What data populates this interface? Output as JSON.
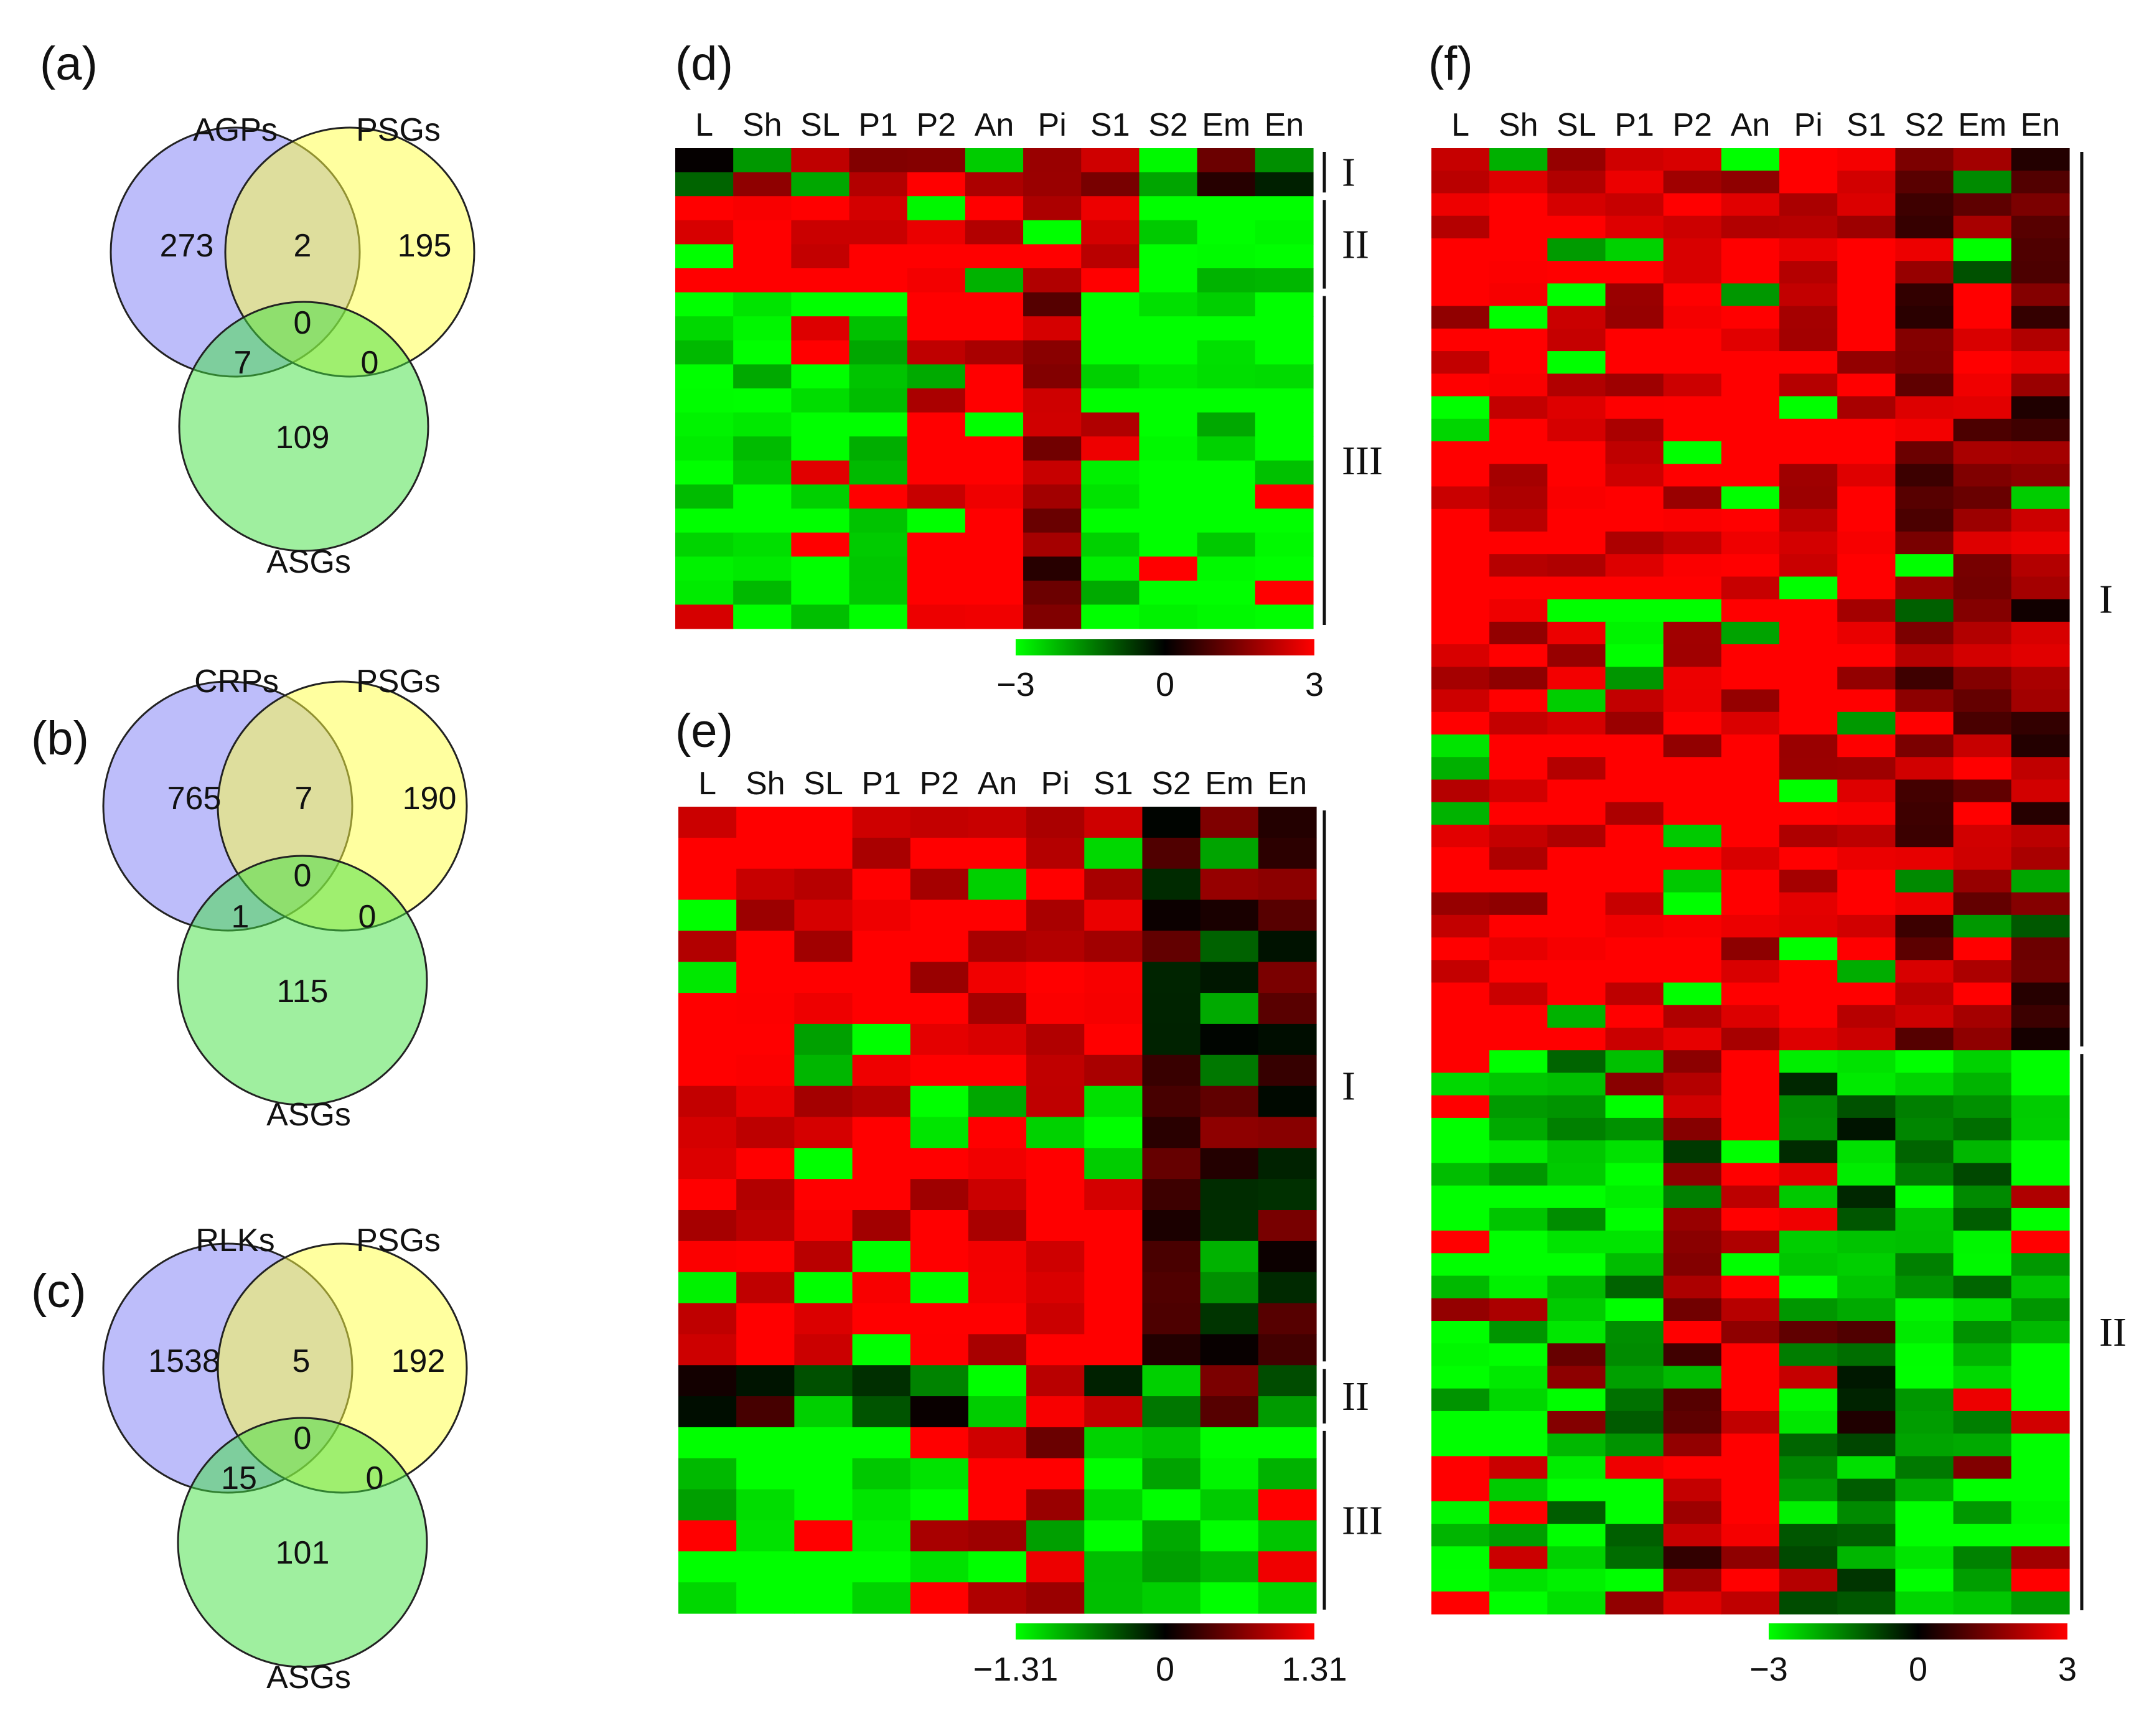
{
  "venn_a": {
    "panel": "(a)",
    "sets": [
      "AGPs",
      "PSGs",
      "ASGs"
    ],
    "counts": {
      "only_1": "273",
      "only_2": "195",
      "only_3": "109",
      "d12": "2",
      "d13": "7",
      "d23": "0",
      "d123": "0"
    }
  },
  "venn_b": {
    "panel": "(b)",
    "sets": [
      "CRPs",
      "PSGs",
      "ASGs"
    ],
    "counts": {
      "only_1": "765",
      "only_2": "190",
      "only_3": "115",
      "d12": "7",
      "d13": "1",
      "d23": "0",
      "d123": "0"
    }
  },
  "venn_c": {
    "panel": "(c)",
    "sets": [
      "RLKs",
      "PSGs",
      "ASGs"
    ],
    "counts": {
      "only_1": "1538",
      "only_2": "192",
      "only_3": "101",
      "d12": "5",
      "d13": "15",
      "d23": "0",
      "d123": "0"
    }
  },
  "colors": {
    "set1": "#7b7bf6",
    "set2": "#ffff80",
    "set3": "#80f080",
    "low": "#00ff00",
    "mid": "#000000",
    "high": "#ff0000"
  },
  "tissues": [
    "L",
    "Sh",
    "SL",
    "P1",
    "P2",
    "An",
    "Pi",
    "S1",
    "S2",
    "Em",
    "En"
  ],
  "heat_d": {
    "panel": "(d)",
    "rows": 20,
    "clusters": [
      "I",
      "II",
      "III"
    ],
    "colorbar": [
      "−3",
      "0",
      "3"
    ],
    "range": [
      -3,
      3
    ]
  },
  "heat_e": {
    "panel": "(e)",
    "rows": 26,
    "clusters": [
      "I",
      "II",
      "III"
    ],
    "colorbar": [
      "−1.31",
      "0",
      "1.31"
    ],
    "range": [
      -1.31,
      1.31
    ]
  },
  "heat_f": {
    "panel": "(f)",
    "rows": 65,
    "clusters": [
      "I",
      "II"
    ],
    "colorbar": [
      "−3",
      "0",
      "3"
    ],
    "range": [
      -3,
      3
    ]
  }
}
